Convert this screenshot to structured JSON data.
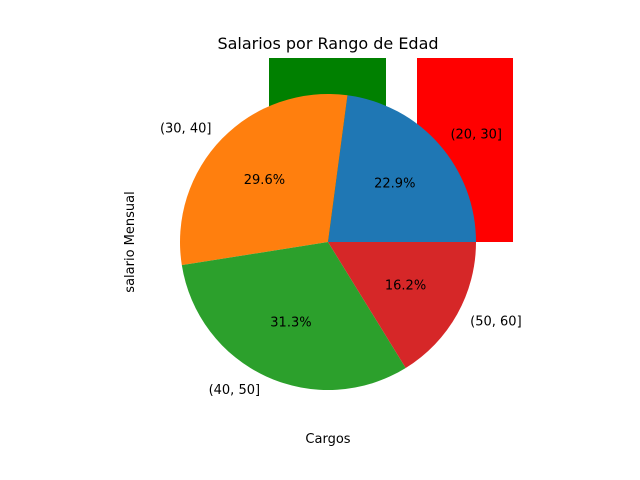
{
  "chart_data": {
    "type": "pie",
    "title": "Salarios por Rango de Edad",
    "xlabel": "Cargos",
    "ylabel": "salario Mensual",
    "slices": [
      {
        "label": "(20, 30]",
        "percent": 22.9,
        "percent_label": "22.9%",
        "color": "#1f77b4"
      },
      {
        "label": "(30, 40]",
        "percent": 29.6,
        "percent_label": "29.6%",
        "color": "#ff7f0e"
      },
      {
        "label": "(40, 50]",
        "percent": 31.3,
        "percent_label": "31.3%",
        "color": "#2ca02c"
      },
      {
        "label": "(50, 60]",
        "percent": 16.2,
        "percent_label": "16.2%",
        "color": "#d62728"
      }
    ],
    "background_bars": [
      {
        "name": "green-bar",
        "color": "#008000"
      },
      {
        "name": "red-bar",
        "color": "#ff0000"
      }
    ],
    "start_angle_deg": 0,
    "direction": "counterclockwise"
  }
}
